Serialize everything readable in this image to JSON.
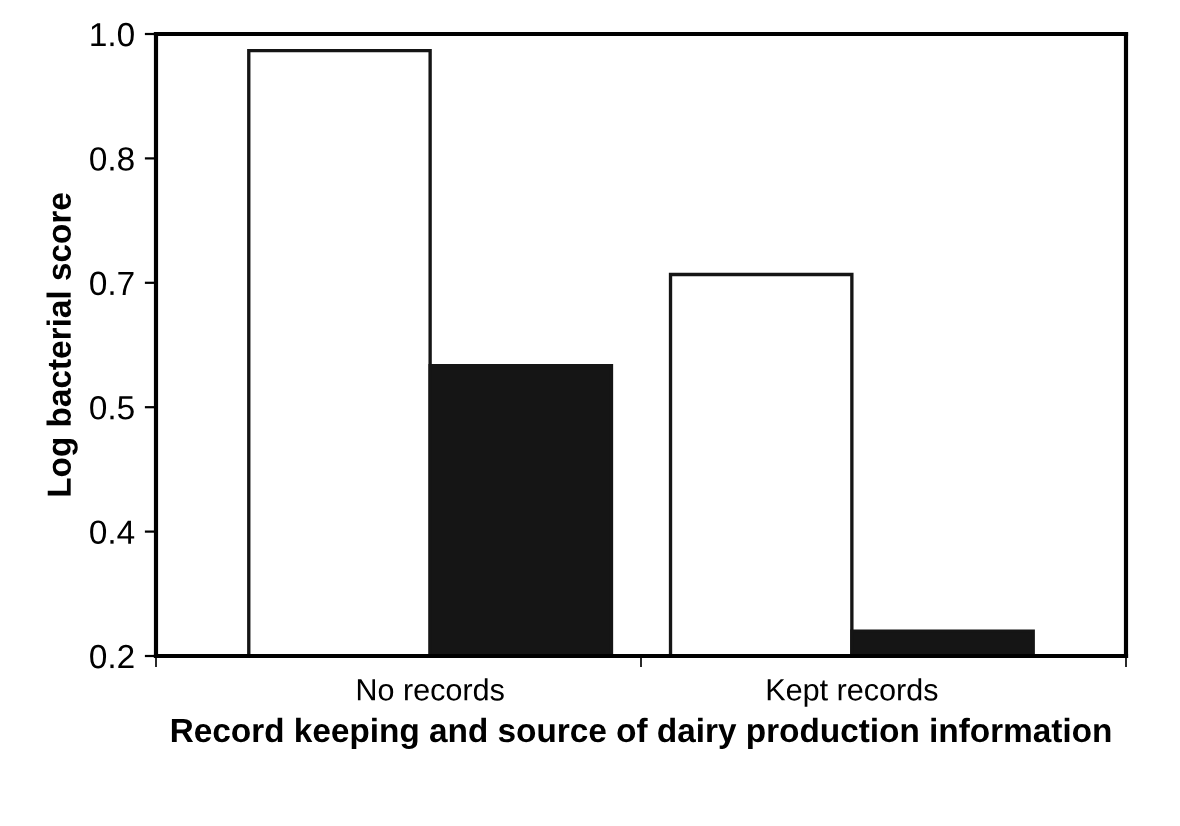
{
  "chart_data": {
    "type": "bar",
    "xlabel": "Record keeping and source of dairy production information",
    "ylabel": "Log bacterial score",
    "categories": [
      "No records",
      "Kept records"
    ],
    "series": [
      {
        "color": "#ffffff",
        "values": [
          0.93,
          0.66
        ]
      },
      {
        "color": "#151515",
        "values": [
          0.55,
          0.23
        ]
      }
    ],
    "ylim": [
      0.2,
      0.95
    ],
    "yticks": [
      0.2,
      {
        "value": 0.35,
        "label": "0.4"
      },
      0.5,
      {
        "value": 0.65,
        "label": "0.7"
      },
      0.8,
      {
        "value": 0.95,
        "label": "1.0"
      }
    ],
    "grid": false,
    "legend": false
  }
}
